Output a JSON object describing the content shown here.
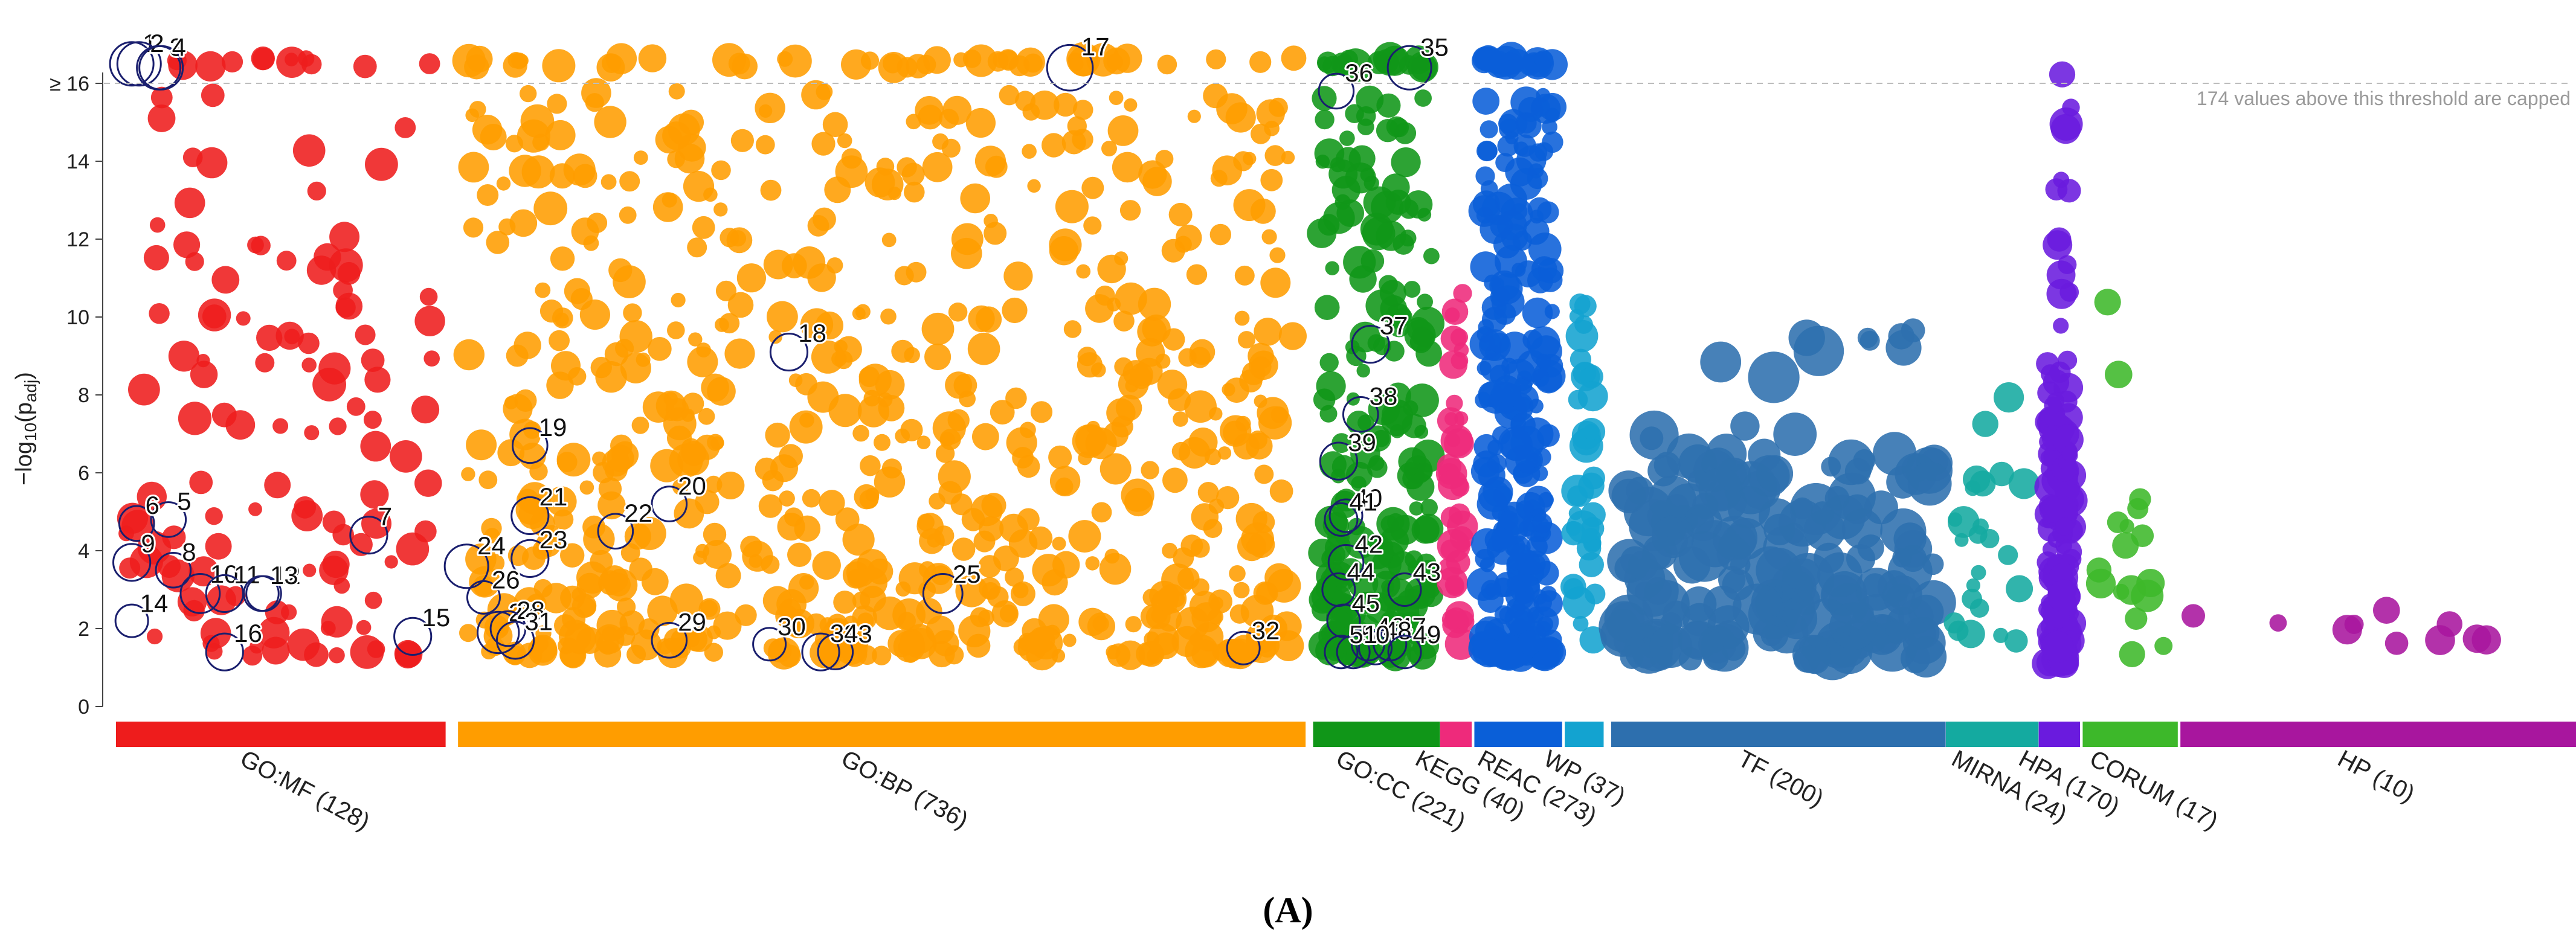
{
  "chart_data": {
    "type": "scatter",
    "title": "",
    "ylabel": "-log10(p_adj)",
    "ylim": [
      0,
      16.8
    ],
    "yticks": [
      "0",
      "2",
      "4",
      "6",
      "8",
      "10",
      "12",
      "14",
      "≥ 16"
    ],
    "cap_value": 16,
    "cap_note": "174 values above this threshold are capped",
    "caption": "(A)",
    "sources": [
      {
        "name": "GO:MF (128)",
        "color": "#ee1c1c",
        "x_range": [
          0,
          128
        ],
        "n": 128
      },
      {
        "name": "GO:BP (736)",
        "color": "#ff9d00",
        "x_range": [
          140,
          480
        ],
        "n": 736
      },
      {
        "name": "GO:CC (221)",
        "color": "#109618",
        "x_range": [
          490,
          535
        ],
        "n": 221
      },
      {
        "name": "KEGG (40)",
        "color": "#ee2a7b",
        "x_range": [
          542,
          548
        ],
        "n": 40
      },
      {
        "name": "REAC (273)",
        "color": "#0a5fd8",
        "x_range": [
          556,
          585
        ],
        "n": 273
      },
      {
        "name": "WP (37)",
        "color": "#13a3d0",
        "x_range": [
          593,
          602
        ],
        "n": 37
      },
      {
        "name": "TF (200)",
        "color": "#2d6fae",
        "x_range": [
          612,
          742
        ],
        "n": 200
      },
      {
        "name": "MIRNA (24)",
        "color": "#14aaa0",
        "x_range": [
          749,
          780
        ],
        "n": 24
      },
      {
        "name": "HPA (170)",
        "color": "#6a1bde",
        "x_range": [
          787,
          797
        ],
        "n": 170
      },
      {
        "name": "CORUM (17)",
        "color": "#3db82a",
        "x_range": [
          805,
          837
        ],
        "n": 17
      },
      {
        "name": "HP (10)",
        "color": "#a8169e",
        "x_range": [
          845,
          1000
        ],
        "n": 10
      }
    ],
    "highlighted_terms": [
      {
        "id": "1",
        "x": 3,
        "y": 16.5,
        "r": 1.0
      },
      {
        "id": "2",
        "x": 6,
        "y": 16.5,
        "r": 1.0
      },
      {
        "id": "3",
        "x": 14,
        "y": 16.4,
        "r": 1.0
      },
      {
        "id": "4",
        "x": 15,
        "y": 16.4,
        "r": 1.0
      },
      {
        "id": "5",
        "x": 18,
        "y": 4.8,
        "r": 0.6
      },
      {
        "id": "6",
        "x": 5,
        "y": 4.7,
        "r": 0.6
      },
      {
        "id": "7",
        "x": 100,
        "y": 4.4,
        "r": 0.7
      },
      {
        "id": "8",
        "x": 20,
        "y": 3.5,
        "r": 0.6
      },
      {
        "id": "9",
        "x": 3,
        "y": 3.7,
        "r": 0.7
      },
      {
        "id": "10",
        "x": 31,
        "y": 2.9,
        "r": 0.8
      },
      {
        "id": "11",
        "x": 41,
        "y": 2.9,
        "r": 0.7
      },
      {
        "id": "12",
        "x": 57,
        "y": 2.9,
        "r": 0.6
      },
      {
        "id": "13",
        "x": 56,
        "y": 2.9,
        "r": 0.6
      },
      {
        "id": "14",
        "x": 3,
        "y": 2.2,
        "r": 0.5
      },
      {
        "id": "15",
        "x": 118,
        "y": 1.8,
        "r": 0.7
      },
      {
        "id": "16",
        "x": 41,
        "y": 1.4,
        "r": 0.7
      },
      {
        "id": "17",
        "x": 387,
        "y": 16.4,
        "r": 1.1
      },
      {
        "id": "18",
        "x": 272,
        "y": 9.1,
        "r": 0.7
      },
      {
        "id": "19",
        "x": 166,
        "y": 6.7,
        "r": 0.6
      },
      {
        "id": "20",
        "x": 223,
        "y": 5.2,
        "r": 0.6
      },
      {
        "id": "21",
        "x": 166,
        "y": 4.9,
        "r": 0.7
      },
      {
        "id": "22",
        "x": 201,
        "y": 4.5,
        "r": 0.6
      },
      {
        "id": "23",
        "x": 166,
        "y": 3.8,
        "r": 0.7
      },
      {
        "id": "24",
        "x": 140,
        "y": 3.6,
        "r": 1.0
      },
      {
        "id": "25",
        "x": 335,
        "y": 2.9,
        "r": 0.8
      },
      {
        "id": "26",
        "x": 147,
        "y": 2.8,
        "r": 0.5
      },
      {
        "id": "27",
        "x": 153,
        "y": 1.9,
        "r": 0.9
      },
      {
        "id": "28",
        "x": 157,
        "y": 2.0,
        "r": 0.6
      },
      {
        "id": "29",
        "x": 223,
        "y": 1.7,
        "r": 0.6
      },
      {
        "id": "30",
        "x": 264,
        "y": 1.6,
        "r": 0.5
      },
      {
        "id": "31",
        "x": 160,
        "y": 1.7,
        "r": 0.7
      },
      {
        "id": "32",
        "x": 458,
        "y": 1.5,
        "r": 0.5
      },
      {
        "id": "33",
        "x": 291,
        "y": 1.4,
        "r": 0.6
      },
      {
        "id": "34",
        "x": 285,
        "y": 1.4,
        "r": 0.7
      },
      {
        "id": "35",
        "x": 526,
        "y": 16.4,
        "r": 1.0
      },
      {
        "id": "36",
        "x": 496,
        "y": 15.8,
        "r": 0.6
      },
      {
        "id": "37",
        "x": 510,
        "y": 9.3,
        "r": 0.7
      },
      {
        "id": "38",
        "x": 506,
        "y": 7.5,
        "r": 0.6
      },
      {
        "id": "39",
        "x": 497,
        "y": 6.3,
        "r": 0.7
      },
      {
        "id": "40",
        "x": 500,
        "y": 4.9,
        "r": 0.5
      },
      {
        "id": "41",
        "x": 498,
        "y": 4.8,
        "r": 0.5
      },
      {
        "id": "42",
        "x": 500,
        "y": 3.7,
        "r": 0.6
      },
      {
        "id": "43",
        "x": 524,
        "y": 3.0,
        "r": 0.5
      },
      {
        "id": "44",
        "x": 497,
        "y": 3.0,
        "r": 0.5
      },
      {
        "id": "45",
        "x": 499,
        "y": 2.2,
        "r": 0.5
      },
      {
        "id": "46",
        "x": 509,
        "y": 1.6,
        "r": 0.5
      },
      {
        "id": "47",
        "x": 518,
        "y": 1.6,
        "r": 0.5
      },
      {
        "id": "48",
        "x": 512,
        "y": 1.5,
        "r": 0.5
      },
      {
        "id": "49",
        "x": 524,
        "y": 1.4,
        "r": 0.5
      },
      {
        "id": "50",
        "x": 503,
        "y": 1.4,
        "r": 0.5
      },
      {
        "id": "51",
        "x": 498,
        "y": 1.4,
        "r": 0.5
      }
    ]
  }
}
